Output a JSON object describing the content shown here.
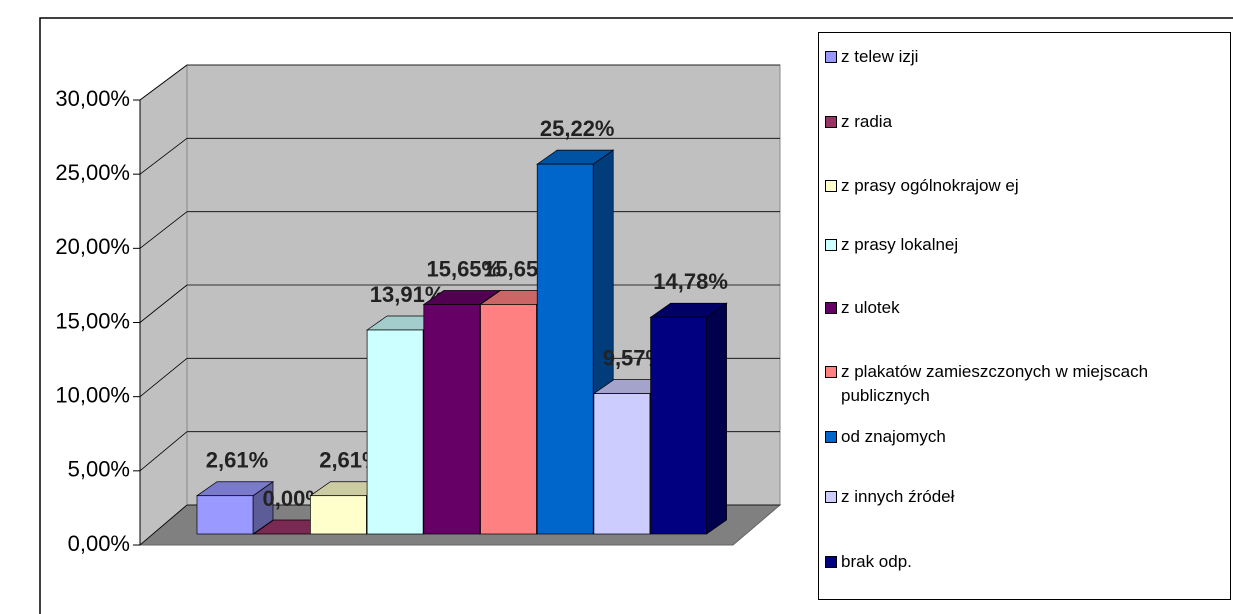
{
  "chart_data": {
    "type": "bar",
    "series": [
      {
        "name": "z telew izji",
        "color": "#9999ff",
        "values": [
          2.61
        ],
        "value_labels": [
          "2,61%"
        ]
      },
      {
        "name": "z radia",
        "color": "#993366",
        "values": [
          0
        ],
        "value_labels": [
          "0,00%"
        ]
      },
      {
        "name": "z prasy ogólnokrajow ej",
        "color": "#ffffcc",
        "values": [
          2.61
        ],
        "value_labels": [
          "2,61%"
        ]
      },
      {
        "name": "z prasy lokalnej",
        "color": "#ccffff",
        "values": [
          13.91
        ],
        "value_labels": [
          "13,91%"
        ]
      },
      {
        "name": "z ulotek",
        "color": "#660066",
        "values": [
          15.65
        ],
        "value_labels": [
          "15,65%"
        ]
      },
      {
        "name": "z plakatów zamieszczonych w miejscach publicznych",
        "color": "#ff8080",
        "values": [
          15.65
        ],
        "value_labels": [
          "15,65%"
        ]
      },
      {
        "name": "od znajomych",
        "color": "#0066cc",
        "values": [
          25.22
        ],
        "value_labels": [
          "25,22%"
        ]
      },
      {
        "name": "z innych źródeł",
        "color": "#ccccff",
        "values": [
          9.57
        ],
        "value_labels": [
          "9,57%"
        ]
      },
      {
        "name": "brak odp.",
        "color": "#000080",
        "values": [
          14.78
        ],
        "value_labels": [
          "14,78%"
        ]
      }
    ],
    "ylim": [
      0,
      30
    ],
    "yticks": [
      {
        "value": 0,
        "label": "0,00%"
      },
      {
        "value": 5,
        "label": "5,00%"
      },
      {
        "value": 10,
        "label": "10,00%"
      },
      {
        "value": 15,
        "label": "15,00%"
      },
      {
        "value": 20,
        "label": "20,00%"
      },
      {
        "value": 25,
        "label": "25,00%"
      },
      {
        "value": 30,
        "label": "30,00%"
      }
    ],
    "grid": true
  }
}
